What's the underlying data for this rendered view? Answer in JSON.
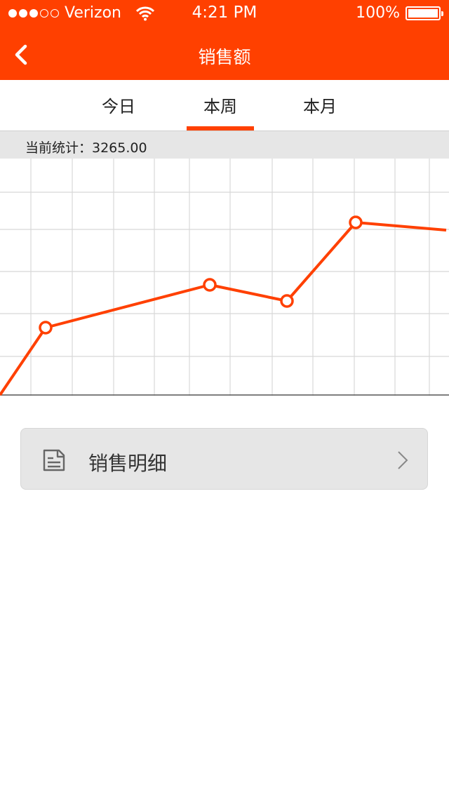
{
  "status_bar": {
    "carrier": "Verizon",
    "time": "4:21 PM",
    "battery": "100%",
    "signal_strength": 3,
    "signal_max": 5
  },
  "nav": {
    "title": "销售额",
    "back_icon": "chevron-left-icon"
  },
  "tabs": [
    {
      "label": "今日",
      "active": false
    },
    {
      "label": "本周",
      "active": true
    },
    {
      "label": "本月",
      "active": false
    }
  ],
  "stats": {
    "text": "当前统计：3265.00"
  },
  "colors": {
    "accent": "#ff4000",
    "grid": "#d8d8d8",
    "strip_bg": "#e6e6e6"
  },
  "chart_data": {
    "type": "line",
    "title": "",
    "xlabel": "",
    "ylabel": "",
    "grid": true,
    "x": [
      0,
      1,
      2,
      3,
      4,
      5
    ],
    "points": [
      {
        "x": 1.0,
        "y": 1.65,
        "marker": true
      },
      {
        "x": 3.0,
        "y": 2.6,
        "marker": true
      },
      {
        "x": 4.0,
        "y": 2.25,
        "marker": true
      },
      {
        "x": 5.0,
        "y": 4.0,
        "marker": true
      },
      {
        "x": 5.95,
        "y": 3.8,
        "marker": false
      }
    ],
    "start_point": {
      "x": 0.2,
      "y": 0.0
    },
    "ylim": [
      0,
      5
    ]
  },
  "detail": {
    "label": "销售明细",
    "icon": "document-icon",
    "chevron": "chevron-right-icon"
  }
}
